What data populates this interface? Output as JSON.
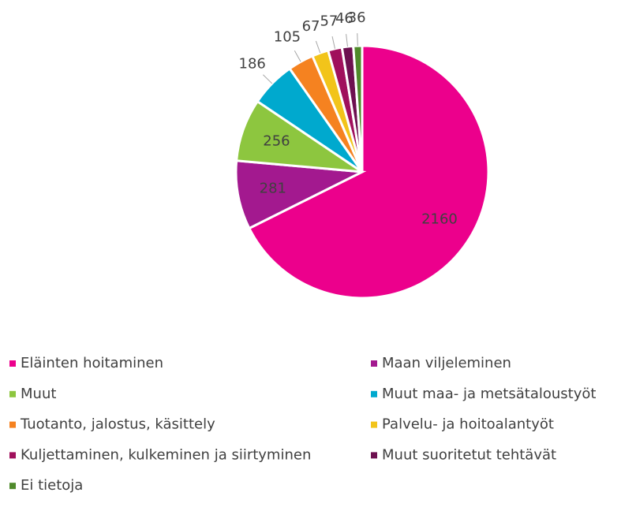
{
  "chart_data": {
    "type": "pie",
    "categories": [
      "Eläinten hoitaminen",
      "Maan viljeleminen",
      "Muut",
      "Muut maa- ja metsätaloustyöt",
      "Tuotanto, jalostus, käsittely",
      "Palvelu- ja hoitoalantyöt",
      "Kuljettaminen, kulkeminen ja siirtyminen",
      "Muut suoritetut tehtävät",
      "Ei tietoja"
    ],
    "values": [
      2160,
      281,
      256,
      186,
      105,
      67,
      57,
      46,
      36
    ],
    "colors": [
      "#ec008c",
      "#a3198f",
      "#8dc63f",
      "#00a9ce",
      "#f58220",
      "#f2c41a",
      "#a0105c",
      "#6d1050",
      "#4f8a2b"
    ],
    "legend": "bottom"
  }
}
